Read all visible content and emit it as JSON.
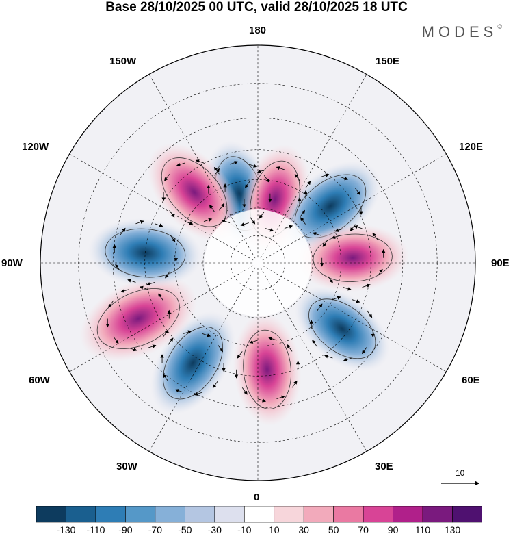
{
  "title": "Base 28/10/2025 00 UTC, valid 28/10/2025 18 UTC",
  "brand": {
    "name": "MODES",
    "mark": "©"
  },
  "longitude_labels": {
    "top": "180",
    "bottom": "0",
    "left": "90W",
    "right": "90E",
    "upper_left_1": "150W",
    "upper_left_2": "120W",
    "upper_right_1": "150E",
    "upper_right_2": "120E",
    "lower_left_1": "60W",
    "lower_left_2": "30W",
    "lower_right_1": "60E",
    "lower_right_2": "30E"
  },
  "vector_scale": {
    "label": "10"
  },
  "colorbar": {
    "tick_labels": [
      "-130",
      "-110",
      "-90",
      "-70",
      "-50",
      "-30",
      "-10",
      "10",
      "30",
      "50",
      "70",
      "90",
      "110",
      "130"
    ],
    "colors": [
      "#0d3b5e",
      "#1a5f8f",
      "#2e7db5",
      "#5598c8",
      "#86b0d8",
      "#b4c6e2",
      "#dde0ee",
      "#ffffff",
      "#f7d6db",
      "#f2aabb",
      "#ea79a2",
      "#d84496",
      "#b0208a",
      "#7a1a7e",
      "#4f1170"
    ]
  },
  "anomaly_centers": [
    {
      "name": "low-180-150W",
      "lon": -165,
      "lat": 64,
      "value": -75
    },
    {
      "name": "high-180-150E",
      "lon": 165,
      "lat": 66,
      "value": 85
    },
    {
      "name": "low-120E-150E",
      "lon": 128,
      "lat": 57,
      "value": -100
    },
    {
      "name": "high-90E",
      "lon": 93,
      "lat": 56,
      "value": 90
    },
    {
      "name": "low-60E",
      "lon": 52,
      "lat": 52,
      "value": -80
    },
    {
      "name": "high-0",
      "lon": 5,
      "lat": 52,
      "value": 90
    },
    {
      "name": "low-30W",
      "lon": -33,
      "lat": 48,
      "value": -95
    },
    {
      "name": "high-60W",
      "lon": -65,
      "lat": 44,
      "value": 125
    },
    {
      "name": "low-90W",
      "lon": -95,
      "lat": 50,
      "value": -95
    },
    {
      "name": "high-120W",
      "lon": -138,
      "lat": 56,
      "value": 100
    }
  ]
}
